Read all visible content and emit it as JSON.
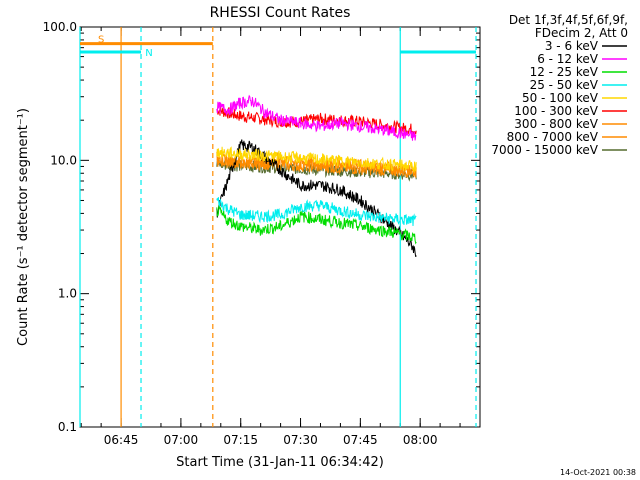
{
  "chart_data": {
    "type": "line",
    "title": "RHESSI Count Rates",
    "xlabel": "Start Time (31-Jan-11 06:34:42)",
    "ylabel": "Count Rate (s⁻¹ detector segment⁻¹)",
    "yscale": "log",
    "ylim": [
      0.1,
      100.0
    ],
    "xlim": [
      "06:34:42",
      "08:15:00"
    ],
    "x_ticks": [
      "06:45",
      "07:00",
      "07:15",
      "07:30",
      "07:45",
      "08:00"
    ],
    "y_ticks": [
      "0.1",
      "1.0",
      "10.0",
      "100.0"
    ],
    "legend_header": [
      "Det 1f,3f,4f,5f,6f,9f,",
      "FDecim 2, Att 0"
    ],
    "legend_position": "right",
    "grid": false,
    "series": [
      {
        "name": "3 - 6 keV",
        "color": "#000000",
        "x": [
          "07:09",
          "07:11",
          "07:13",
          "07:15",
          "07:18",
          "07:22",
          "07:26",
          "07:30",
          "07:35",
          "07:40",
          "07:45",
          "07:50",
          "07:55",
          "07:58",
          "07:59"
        ],
        "y": [
          4.0,
          6.0,
          9.0,
          13.0,
          12.5,
          10.0,
          8.0,
          6.5,
          6.5,
          6.0,
          5.0,
          3.8,
          2.8,
          2.3,
          2.0
        ]
      },
      {
        "name": "6 - 12 keV",
        "color": "#ff00ff",
        "x": [
          "07:09",
          "07:12",
          "07:15",
          "07:18",
          "07:21",
          "07:25",
          "07:30",
          "07:35",
          "07:40",
          "07:45",
          "07:50",
          "07:55",
          "07:59"
        ],
        "y": [
          25,
          24,
          27,
          28,
          23,
          20,
          19,
          18,
          19,
          18,
          17,
          16,
          15
        ]
      },
      {
        "name": "12 - 25 keV",
        "color": "#00dd00",
        "x": [
          "07:09",
          "07:12",
          "07:15",
          "07:20",
          "07:25",
          "07:30",
          "07:35",
          "07:40",
          "07:45",
          "07:50",
          "07:55",
          "07:59"
        ],
        "y": [
          4.2,
          3.5,
          3.2,
          3.0,
          3.2,
          3.8,
          3.6,
          3.4,
          3.2,
          3.0,
          2.8,
          2.6
        ]
      },
      {
        "name": "25 - 50 keV",
        "color": "#00eeee",
        "x": [
          "07:09",
          "07:12",
          "07:15",
          "07:20",
          "07:25",
          "07:30",
          "07:35",
          "07:40",
          "07:45",
          "07:50",
          "07:55",
          "07:59"
        ],
        "y": [
          5.0,
          4.3,
          3.9,
          3.8,
          3.9,
          4.5,
          4.6,
          4.2,
          3.9,
          3.7,
          3.6,
          3.5
        ]
      },
      {
        "name": "50 - 100 keV",
        "color": "#ffd700",
        "x": [
          "07:09",
          "07:59"
        ],
        "y": [
          11.5,
          9.0
        ]
      },
      {
        "name": "100 - 300 keV",
        "color": "#ff0000",
        "x": [
          "07:09",
          "07:12",
          "07:15",
          "07:20",
          "07:25",
          "07:30",
          "07:35",
          "07:40",
          "07:45",
          "07:50",
          "07:55",
          "07:59"
        ],
        "y": [
          24,
          22.5,
          21.5,
          20.5,
          19.5,
          19.5,
          20.5,
          20,
          19.5,
          18.5,
          17.5,
          17
        ]
      },
      {
        "name": "300 - 800 keV",
        "color": "#ff8c00",
        "x": [
          "07:09",
          "07:12",
          "07:15",
          "07:20",
          "07:25",
          "07:30",
          "07:35",
          "07:40",
          "07:45",
          "07:50",
          "07:55",
          "07:59"
        ],
        "y": [
          10.5,
          10.0,
          9.5,
          9.8,
          10.2,
          9.8,
          9.5,
          9.6,
          9.2,
          9.0,
          8.7,
          8.5
        ]
      },
      {
        "name": "800 - 7000 keV",
        "color": "#ff8c00",
        "x": [
          "07:09",
          "07:59"
        ],
        "y": [
          9.8,
          8.2
        ]
      },
      {
        "name": "7000 - 15000 keV",
        "color": "#556b2f",
        "x": [
          "07:09",
          "07:59"
        ],
        "y": [
          9.3,
          7.8
        ]
      }
    ],
    "annotations": {
      "orange_markers": [
        {
          "label": "S",
          "color": "#ff8c00",
          "level": 75,
          "from": "06:34:42",
          "to": "07:08",
          "style": "solid"
        }
      ],
      "cyan_markers": [
        {
          "label": "N",
          "color": "#00eeee",
          "level": 65,
          "from": "06:34:42",
          "to": "06:50",
          "style": "solid"
        },
        {
          "color": "#00eeee",
          "level": 65,
          "from": "07:55",
          "to": "08:14",
          "style": "solid"
        }
      ],
      "vertical_lines": [
        {
          "time": "06:34:42",
          "color": "#00eeee",
          "style": "solid"
        },
        {
          "time": "06:45",
          "color": "#ff8c00",
          "style": "solid"
        },
        {
          "time": "06:50",
          "color": "#00eeee",
          "style": "dashed"
        },
        {
          "time": "07:08",
          "color": "#ff8c00",
          "style": "dashed"
        },
        {
          "time": "07:55",
          "color": "#00eeee",
          "style": "solid"
        },
        {
          "time": "08:14",
          "color": "#00eeee",
          "style": "dashed"
        }
      ]
    }
  },
  "footer": {
    "date_stamp": "14-Oct-2021 00:38"
  }
}
